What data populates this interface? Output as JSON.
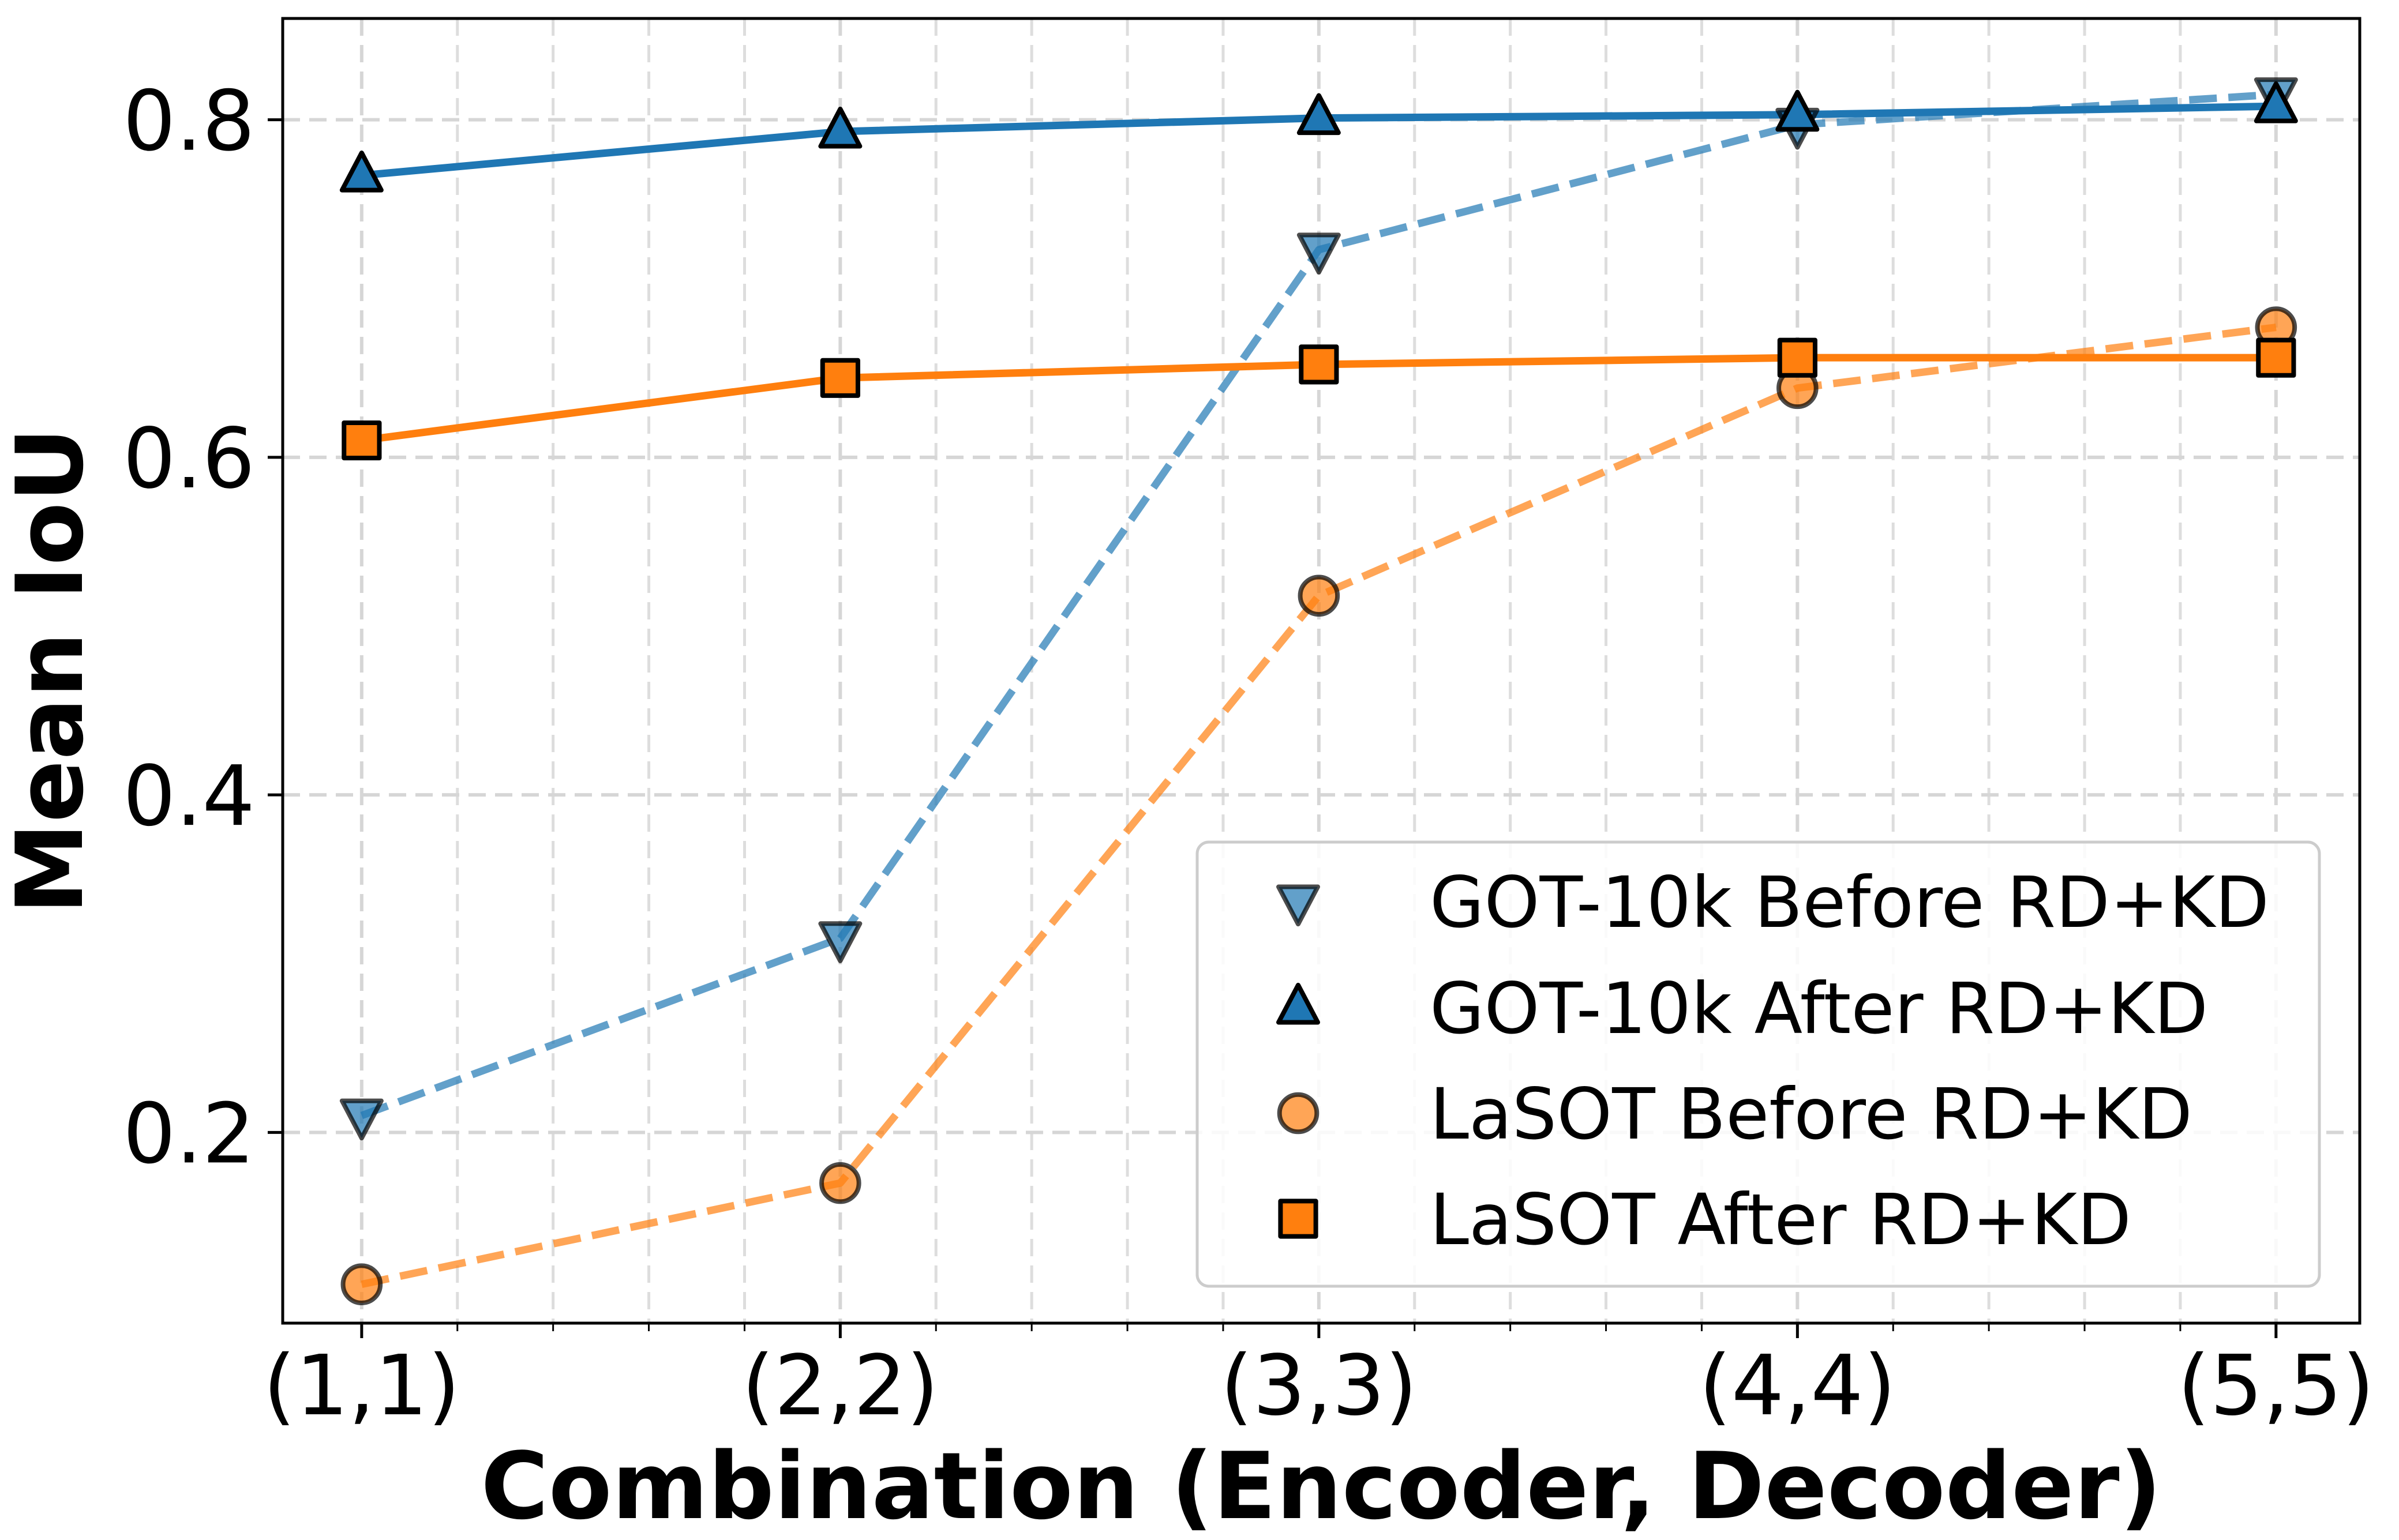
{
  "chart_data": {
    "type": "line",
    "title": "",
    "xlabel": "Combination (Encoder, Decoder)",
    "ylabel": "Mean IoU",
    "categories": [
      "(1,1)",
      "(2,2)",
      "(3,3)",
      "(4,4)",
      "(5,5)"
    ],
    "x": [
      1,
      2,
      3,
      4,
      5
    ],
    "xlim": [
      0.835,
      5.175
    ],
    "ylim": [
      0.087,
      0.86
    ],
    "yticks": [
      0.2,
      0.4,
      0.6,
      0.8
    ],
    "ytick_labels": [
      "0.2",
      "0.4",
      "0.6",
      "0.8"
    ],
    "grid": true,
    "legend_position": "lower-right",
    "series": [
      {
        "name": "GOT-10k Before RD+KD",
        "values": [
          0.21,
          0.315,
          0.723,
          0.797,
          0.815
        ],
        "color": "#1f77b4",
        "line_style": "dashed",
        "marker": "triangle-down",
        "faded": true
      },
      {
        "name": "GOT-10k After RD+KD",
        "values": [
          0.767,
          0.793,
          0.801,
          0.803,
          0.808
        ],
        "color": "#1f77b4",
        "line_style": "solid",
        "marker": "triangle-up",
        "faded": false
      },
      {
        "name": "LaSOT Before RD+KD",
        "values": [
          0.11,
          0.17,
          0.518,
          0.641,
          0.677
        ],
        "color": "#ff7f0e",
        "line_style": "dashed",
        "marker": "circle",
        "faded": true
      },
      {
        "name": "LaSOT After RD+KD",
        "values": [
          0.61,
          0.647,
          0.655,
          0.659,
          0.659
        ],
        "color": "#ff7f0e",
        "line_style": "solid",
        "marker": "square",
        "faded": false
      }
    ]
  }
}
